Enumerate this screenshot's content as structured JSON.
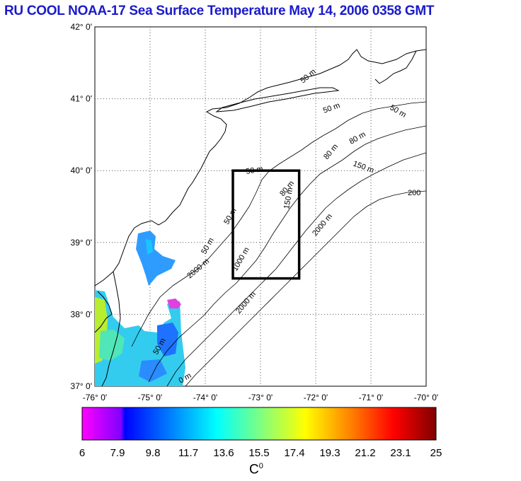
{
  "title": "RU COOL  NOAA-17 Sea Surface Temperature May 14, 2006 0358 GMT",
  "map": {
    "lon_range": [
      -76,
      -70
    ],
    "lat_range": [
      37,
      42
    ],
    "lon_ticks": [
      {
        "value": -76,
        "label": "-76° 0'"
      },
      {
        "value": -75,
        "label": "-75° 0'"
      },
      {
        "value": -74,
        "label": "-74° 0'"
      },
      {
        "value": -73,
        "label": "-73° 0'"
      },
      {
        "value": -72,
        "label": "-72° 0'"
      },
      {
        "value": -71,
        "label": "-71° 0'"
      },
      {
        "value": -70,
        "label": "-70° 0'"
      }
    ],
    "lat_ticks": [
      {
        "value": 42,
        "label": "42° 0'"
      },
      {
        "value": 41,
        "label": "41° 0'"
      },
      {
        "value": 40,
        "label": "40° 0'"
      },
      {
        "value": 39,
        "label": "39° 0'"
      },
      {
        "value": 38,
        "label": "38° 0'"
      },
      {
        "value": 37,
        "label": "37° 0'"
      }
    ],
    "study_box": {
      "lon_min": -73.5,
      "lon_max": -72.3,
      "lat_min": 38.5,
      "lat_max": 40.0
    },
    "contour_labels": [
      "50 m",
      "50 m",
      "50 m",
      "50 m",
      "50 m",
      "50 m",
      "80 m",
      "80 m",
      "80 m",
      "150 m",
      "150 m",
      "1000 m",
      "2000 m",
      "2000 m",
      "2000 m",
      "200",
      "50 m",
      "0 m"
    ]
  },
  "colorbar": {
    "min": 6,
    "max": 25,
    "tick_labels": [
      "6",
      "7.9",
      "9.8",
      "11.7",
      "13.6",
      "15.5",
      "17.4",
      "19.3",
      "21.2",
      "23.1",
      "25"
    ],
    "unit_base": "C",
    "unit_sup": "0",
    "colors": [
      "#ff00ff",
      "#0000ff",
      "#00ffff",
      "#ffff00",
      "#ff0000",
      "#800000"
    ]
  }
}
